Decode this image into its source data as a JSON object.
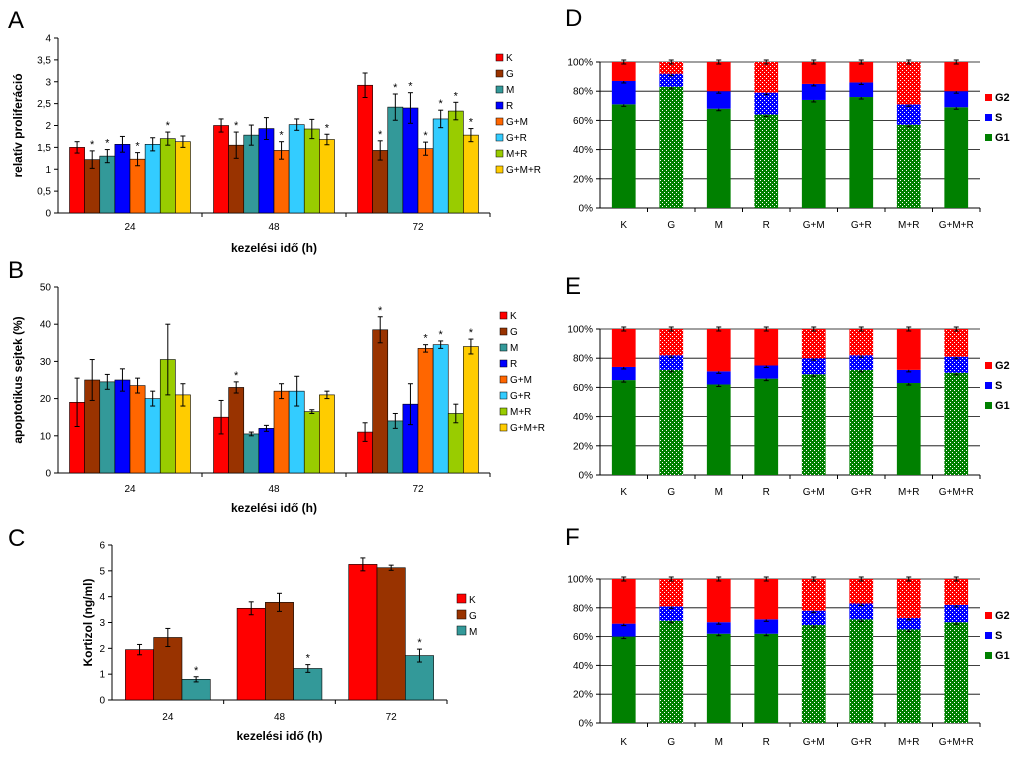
{
  "chart_data": [
    {
      "id": "A",
      "type": "bar",
      "panel_label": "A",
      "ylabel": "relatív proliferáció",
      "xlabel": "kezelési idő (h)",
      "categories": [
        "24",
        "48",
        "72"
      ],
      "ylim": [
        0,
        4
      ],
      "yticks": [
        "0",
        "0,5",
        "1",
        "1,5",
        "2",
        "2,5",
        "3",
        "3,5",
        "4"
      ],
      "legend_position": "right",
      "series": [
        {
          "name": "K",
          "color": "#ff0000",
          "values": [
            1.5,
            2.0,
            2.92
          ],
          "errors": [
            0.13,
            0.15,
            0.28
          ],
          "sig": [
            false,
            false,
            false
          ]
        },
        {
          "name": "G",
          "color": "#993300",
          "values": [
            1.22,
            1.55,
            1.43
          ],
          "errors": [
            0.2,
            0.3,
            0.22
          ],
          "sig": [
            true,
            true,
            true
          ]
        },
        {
          "name": "M",
          "color": "#339999",
          "values": [
            1.3,
            1.78,
            2.42
          ],
          "errors": [
            0.15,
            0.23,
            0.3
          ],
          "sig": [
            true,
            false,
            true
          ]
        },
        {
          "name": "R",
          "color": "#0000ff",
          "values": [
            1.57,
            1.93,
            2.4
          ],
          "errors": [
            0.18,
            0.25,
            0.35
          ],
          "sig": [
            false,
            false,
            true
          ]
        },
        {
          "name": "G+M",
          "color": "#ff6600",
          "values": [
            1.23,
            1.43,
            1.47
          ],
          "errors": [
            0.15,
            0.2,
            0.15
          ],
          "sig": [
            true,
            true,
            true
          ]
        },
        {
          "name": "G+R",
          "color": "#33ccff",
          "values": [
            1.57,
            2.02,
            2.15
          ],
          "errors": [
            0.15,
            0.13,
            0.2
          ],
          "sig": [
            false,
            false,
            true
          ]
        },
        {
          "name": "M+R",
          "color": "#99cc00",
          "values": [
            1.7,
            1.92,
            2.33
          ],
          "errors": [
            0.15,
            0.22,
            0.2
          ],
          "sig": [
            true,
            false,
            true
          ]
        },
        {
          "name": "G+M+R",
          "color": "#ffcc00",
          "values": [
            1.63,
            1.68,
            1.78
          ],
          "errors": [
            0.13,
            0.12,
            0.15
          ],
          "sig": [
            false,
            true,
            true
          ]
        }
      ]
    },
    {
      "id": "B",
      "type": "bar",
      "panel_label": "B",
      "ylabel": "apoptotikus sejtek (%)",
      "xlabel": "kezelési idő (h)",
      "categories": [
        "24",
        "48",
        "72"
      ],
      "ylim": [
        0,
        50
      ],
      "yticks": [
        "0",
        "10",
        "20",
        "30",
        "40",
        "50"
      ],
      "legend_position": "right",
      "series": [
        {
          "name": "K",
          "color": "#ff0000",
          "values": [
            19,
            15,
            11
          ],
          "errors": [
            6.5,
            4.5,
            2.5
          ],
          "sig": [
            false,
            false,
            false
          ]
        },
        {
          "name": "G",
          "color": "#993300",
          "values": [
            25,
            23,
            38.5
          ],
          "errors": [
            5.5,
            1.5,
            3.5
          ],
          "sig": [
            false,
            true,
            true
          ]
        },
        {
          "name": "M",
          "color": "#339999",
          "values": [
            24.5,
            10.5,
            14
          ],
          "errors": [
            2,
            0.5,
            2
          ],
          "sig": [
            false,
            false,
            false
          ]
        },
        {
          "name": "R",
          "color": "#0000ff",
          "values": [
            25,
            12,
            18.5
          ],
          "errors": [
            3,
            0.8,
            5.5
          ],
          "sig": [
            false,
            false,
            false
          ]
        },
        {
          "name": "G+M",
          "color": "#ff6600",
          "values": [
            23.5,
            22,
            33.5
          ],
          "errors": [
            2,
            2,
            1
          ],
          "sig": [
            false,
            false,
            true
          ]
        },
        {
          "name": "G+R",
          "color": "#33ccff",
          "values": [
            20,
            22,
            34.5
          ],
          "errors": [
            2,
            4,
            1
          ],
          "sig": [
            false,
            false,
            true
          ]
        },
        {
          "name": "M+R",
          "color": "#99cc00",
          "values": [
            30.5,
            16.5,
            16
          ],
          "errors": [
            9.5,
            0.5,
            2.5
          ],
          "sig": [
            false,
            false,
            false
          ]
        },
        {
          "name": "G+M+R",
          "color": "#ffcc00",
          "values": [
            21,
            21,
            34
          ],
          "errors": [
            3,
            1,
            2
          ],
          "sig": [
            false,
            false,
            true
          ]
        }
      ]
    },
    {
      "id": "C",
      "type": "bar",
      "panel_label": "C",
      "ylabel": "Kortizol (ng/ml)",
      "xlabel": "kezelési idő (h)",
      "categories": [
        "24",
        "48",
        "72"
      ],
      "ylim": [
        0,
        6
      ],
      "yticks": [
        "0",
        "1",
        "2",
        "3",
        "4",
        "5",
        "6"
      ],
      "legend_position": "right",
      "series": [
        {
          "name": "K",
          "color": "#ff0000",
          "values": [
            1.95,
            3.55,
            5.25
          ],
          "errors": [
            0.2,
            0.25,
            0.25
          ],
          "sig": [
            false,
            false,
            false
          ]
        },
        {
          "name": "G",
          "color": "#993300",
          "values": [
            2.42,
            3.78,
            5.12
          ],
          "errors": [
            0.35,
            0.35,
            0.1
          ],
          "sig": [
            false,
            false,
            false
          ]
        },
        {
          "name": "M",
          "color": "#339999",
          "values": [
            0.8,
            1.22,
            1.72
          ],
          "errors": [
            0.1,
            0.15,
            0.25
          ],
          "sig": [
            true,
            true,
            true
          ]
        }
      ]
    },
    {
      "id": "D",
      "type": "bar",
      "stacked": true,
      "panel_label": "D",
      "categories": [
        "K",
        "G",
        "M",
        "R",
        "G+M",
        "G+R",
        "M+R",
        "G+M+R"
      ],
      "yticks": [
        "0%",
        "20%",
        "40%",
        "60%",
        "80%",
        "100%"
      ],
      "legend_position": "right",
      "hatched": [
        false,
        true,
        false,
        true,
        false,
        false,
        true,
        false
      ],
      "legend": [
        "G2",
        "S",
        "G1"
      ],
      "series": [
        {
          "name": "G1",
          "color": "#008000",
          "values": [
            71,
            83,
            68,
            64,
            74,
            76,
            57,
            69
          ]
        },
        {
          "name": "S",
          "color": "#0000ff",
          "values": [
            16,
            9,
            12,
            15,
            11,
            10,
            14,
            11
          ]
        },
        {
          "name": "G2",
          "color": "#ff0000",
          "values": [
            13,
            8,
            20,
            21,
            15,
            14,
            29,
            20
          ]
        }
      ]
    },
    {
      "id": "E",
      "type": "bar",
      "stacked": true,
      "panel_label": "E",
      "categories": [
        "K",
        "G",
        "M",
        "R",
        "G+M",
        "G+R",
        "M+R",
        "G+M+R"
      ],
      "yticks": [
        "0%",
        "20%",
        "40%",
        "60%",
        "80%",
        "100%"
      ],
      "legend_position": "right",
      "hatched": [
        false,
        true,
        false,
        false,
        true,
        true,
        false,
        true
      ],
      "legend": [
        "G2",
        "S",
        "G1"
      ],
      "series": [
        {
          "name": "G1",
          "color": "#008000",
          "values": [
            65,
            72,
            62,
            66,
            69,
            72,
            63,
            70
          ]
        },
        {
          "name": "S",
          "color": "#0000ff",
          "values": [
            9,
            10,
            9,
            9,
            11,
            10,
            9,
            11
          ]
        },
        {
          "name": "G2",
          "color": "#ff0000",
          "values": [
            26,
            18,
            29,
            25,
            20,
            18,
            28,
            19
          ]
        }
      ]
    },
    {
      "id": "F",
      "type": "bar",
      "stacked": true,
      "panel_label": "F",
      "categories": [
        "K",
        "G",
        "M",
        "R",
        "G+M",
        "G+R",
        "M+R",
        "G+M+R"
      ],
      "yticks": [
        "0%",
        "20%",
        "40%",
        "60%",
        "80%",
        "100%"
      ],
      "legend_position": "right",
      "hatched": [
        false,
        true,
        false,
        false,
        true,
        true,
        true,
        true
      ],
      "legend": [
        "G2",
        "S",
        "G1"
      ],
      "series": [
        {
          "name": "G1",
          "color": "#008000",
          "values": [
            60,
            71,
            62,
            62,
            68,
            72,
            65,
            70
          ]
        },
        {
          "name": "S",
          "color": "#0000ff",
          "values": [
            9,
            10,
            8,
            10,
            10,
            11,
            8,
            12
          ]
        },
        {
          "name": "G2",
          "color": "#ff0000",
          "values": [
            31,
            19,
            30,
            28,
            22,
            17,
            27,
            18
          ]
        }
      ]
    }
  ]
}
